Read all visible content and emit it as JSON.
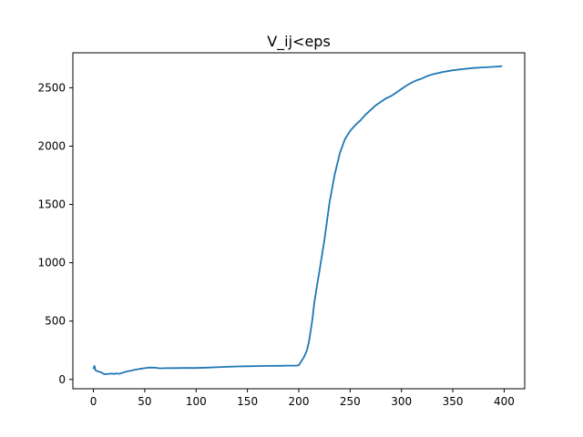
{
  "chart_data": {
    "type": "line",
    "title": "V_ij<eps",
    "xlabel": "",
    "ylabel": "",
    "xlim": [
      -20,
      420
    ],
    "ylim": [
      -80,
      2800
    ],
    "x_ticks": [
      0,
      50,
      100,
      150,
      200,
      250,
      300,
      350,
      400
    ],
    "y_ticks": [
      0,
      500,
      1000,
      1500,
      2000,
      2500
    ],
    "grid": false,
    "legend": "none",
    "line_color": "#1f77b4",
    "series": [
      {
        "x": [
          0,
          1,
          2,
          3,
          5,
          8,
          10,
          12,
          15,
          18,
          20,
          22,
          25,
          28,
          30,
          35,
          40,
          45,
          50,
          55,
          60,
          65,
          70,
          80,
          90,
          100,
          110,
          120,
          130,
          140,
          150,
          160,
          170,
          180,
          190,
          198,
          200,
          202,
          205,
          208,
          210,
          213,
          215,
          218,
          220,
          225,
          230,
          235,
          240,
          245,
          250,
          255,
          260,
          265,
          270,
          275,
          280,
          285,
          290,
          295,
          300,
          305,
          310,
          315,
          320,
          325,
          330,
          340,
          350,
          360,
          370,
          380,
          390,
          398
        ],
        "y": [
          90,
          115,
          80,
          72,
          68,
          58,
          47,
          45,
          48,
          50,
          46,
          52,
          48,
          56,
          62,
          72,
          82,
          90,
          96,
          102,
          100,
          95,
          96,
          97,
          99,
          98,
          101,
          104,
          108,
          111,
          113,
          114,
          116,
          117,
          118,
          118,
          122,
          150,
          190,
          250,
          330,
          500,
          650,
          820,
          920,
          1200,
          1520,
          1760,
          1940,
          2060,
          2130,
          2180,
          2220,
          2270,
          2310,
          2350,
          2380,
          2410,
          2430,
          2460,
          2490,
          2520,
          2545,
          2565,
          2580,
          2600,
          2615,
          2635,
          2650,
          2660,
          2670,
          2675,
          2680,
          2685
        ]
      }
    ]
  }
}
